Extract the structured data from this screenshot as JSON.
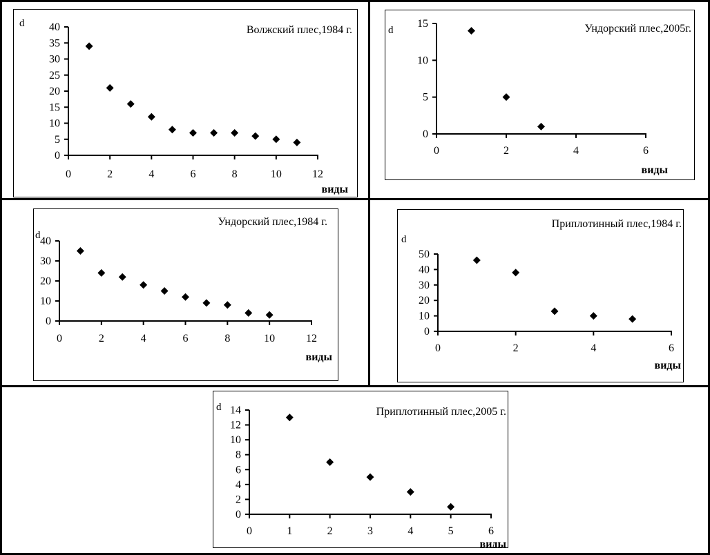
{
  "page": {
    "background_color": "#ffffff",
    "line_color": "#000000",
    "marker_color": "#000000"
  },
  "chart_data": [
    {
      "type": "scatter",
      "title": "Волжский плес,1984 г.",
      "ylabel": "d",
      "xlabel": "виды",
      "x": [
        1,
        2,
        3,
        4,
        5,
        6,
        7,
        8,
        9,
        10,
        11
      ],
      "y": [
        34,
        21,
        16,
        12,
        8,
        7,
        7,
        7,
        6,
        5,
        4
      ],
      "xlim": [
        0,
        12
      ],
      "ylim": [
        0,
        40
      ],
      "xticks": [
        0,
        2,
        4,
        6,
        8,
        10,
        12
      ],
      "yticks": [
        0,
        5,
        10,
        15,
        20,
        25,
        30,
        35,
        40
      ],
      "marker": "diamond",
      "grid": false,
      "legend_position": "none"
    },
    {
      "type": "scatter",
      "title": "Ундорский плес,2005г.",
      "ylabel": "d",
      "xlabel": "виды",
      "x": [
        1,
        2,
        3
      ],
      "y": [
        14,
        5,
        1
      ],
      "xlim": [
        0,
        6
      ],
      "ylim": [
        0,
        15
      ],
      "xticks": [
        0,
        2,
        4,
        6
      ],
      "yticks": [
        0,
        5,
        10,
        15
      ],
      "marker": "diamond",
      "grid": false,
      "legend_position": "none"
    },
    {
      "type": "scatter",
      "title": "Ундорский плес,1984 г.",
      "ylabel": "d",
      "xlabel": "виды",
      "x": [
        1,
        2,
        3,
        4,
        5,
        6,
        7,
        8,
        9,
        10
      ],
      "y": [
        35,
        24,
        22,
        18,
        15,
        12,
        9,
        8,
        4,
        3
      ],
      "xlim": [
        0,
        12
      ],
      "ylim": [
        0,
        40
      ],
      "xticks": [
        0,
        2,
        4,
        6,
        8,
        10,
        12
      ],
      "yticks": [
        0,
        10,
        20,
        30,
        40
      ],
      "marker": "diamond",
      "grid": false,
      "legend_position": "none"
    },
    {
      "type": "scatter",
      "title": "Приплотинный плес,1984 г.",
      "ylabel": "d",
      "xlabel": "виды",
      "x": [
        1,
        2,
        3,
        4,
        5
      ],
      "y": [
        46,
        38,
        13,
        10,
        8
      ],
      "xlim": [
        0,
        6
      ],
      "ylim": [
        0,
        50
      ],
      "xticks": [
        0,
        2,
        4,
        6
      ],
      "yticks": [
        0,
        10,
        20,
        30,
        40,
        50
      ],
      "marker": "diamond",
      "grid": false,
      "legend_position": "none"
    },
    {
      "type": "scatter",
      "title": "Приплотинный плес,2005 г.",
      "ylabel": "d",
      "xlabel": "виды",
      "x": [
        1,
        2,
        3,
        4,
        5
      ],
      "y": [
        13,
        7,
        5,
        3,
        1
      ],
      "xlim": [
        0,
        6
      ],
      "ylim": [
        0,
        14
      ],
      "xticks": [
        0,
        1,
        2,
        3,
        4,
        5,
        6
      ],
      "yticks": [
        0,
        2,
        4,
        6,
        8,
        10,
        12,
        14
      ],
      "marker": "diamond",
      "grid": false,
      "legend_position": "none"
    }
  ]
}
